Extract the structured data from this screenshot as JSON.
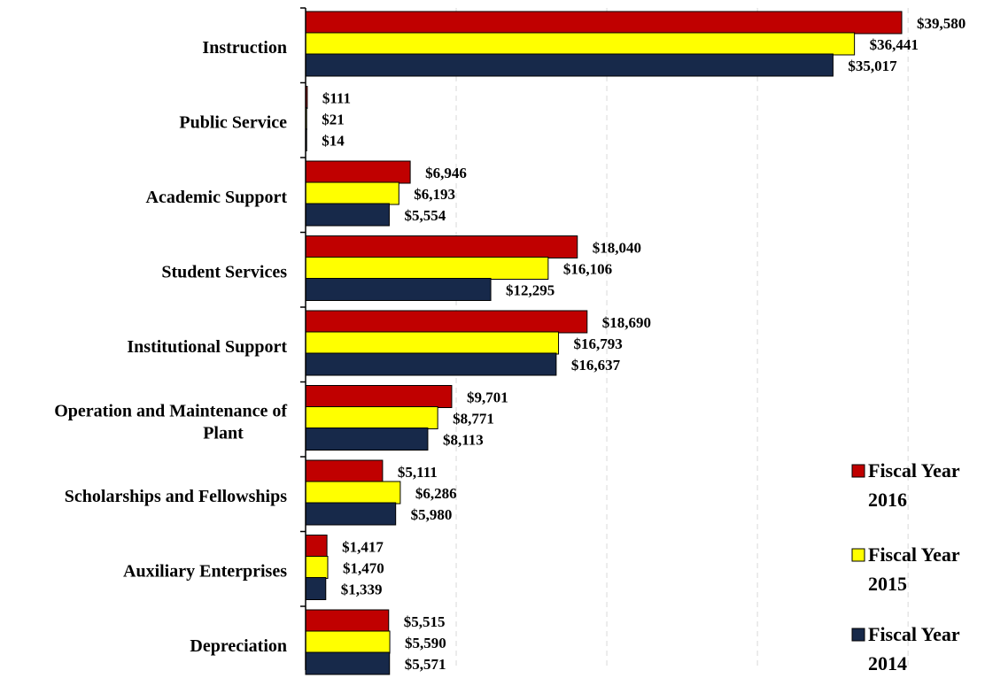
{
  "chart_data": {
    "type": "bar",
    "orientation": "horizontal",
    "categories": [
      "Instruction",
      "Public Service",
      "Academic Support",
      "Student Services",
      "Institutional Support",
      "Operation and Maintenance of Plant",
      "Scholarships and Fellowships",
      "Auxiliary Enterprises",
      "Depreciation"
    ],
    "series": [
      {
        "name": "Fiscal Year 2016",
        "legend_lines": [
          "Fiscal Year",
          "2016"
        ],
        "color": "#c00000",
        "values": [
          39580,
          111,
          6946,
          18040,
          18690,
          9701,
          5111,
          1417,
          5515
        ],
        "labels": [
          "$39,580",
          "$111",
          "$6,946",
          "$18,040",
          "$18,690",
          "$9,701",
          "$5,111",
          "$1,417",
          "$5,515"
        ]
      },
      {
        "name": "Fiscal Year 2015",
        "legend_lines": [
          "Fiscal Year",
          "2015"
        ],
        "color": "#ffff00",
        "values": [
          36441,
          21,
          6193,
          16106,
          16793,
          8771,
          6286,
          1470,
          5590
        ],
        "labels": [
          "$36,441",
          "$21",
          "$6,193",
          "$16,106",
          "$16,793",
          "$8,771",
          "$6,286",
          "$1,470",
          "$5,590"
        ]
      },
      {
        "name": "Fiscal Year 2014",
        "legend_lines": [
          "Fiscal Year",
          "2014"
        ],
        "color": "#17294a",
        "values": [
          35017,
          14,
          5554,
          12295,
          16637,
          8113,
          5980,
          1339,
          5571
        ],
        "labels": [
          "$35,017",
          "$14",
          "$5,554",
          "$12,295",
          "$16,637",
          "$8,113",
          "$5,980",
          "$1,339",
          "$5,571"
        ]
      }
    ],
    "xlim": [
      0,
      40000
    ],
    "grid": true,
    "legend_position": "right"
  }
}
